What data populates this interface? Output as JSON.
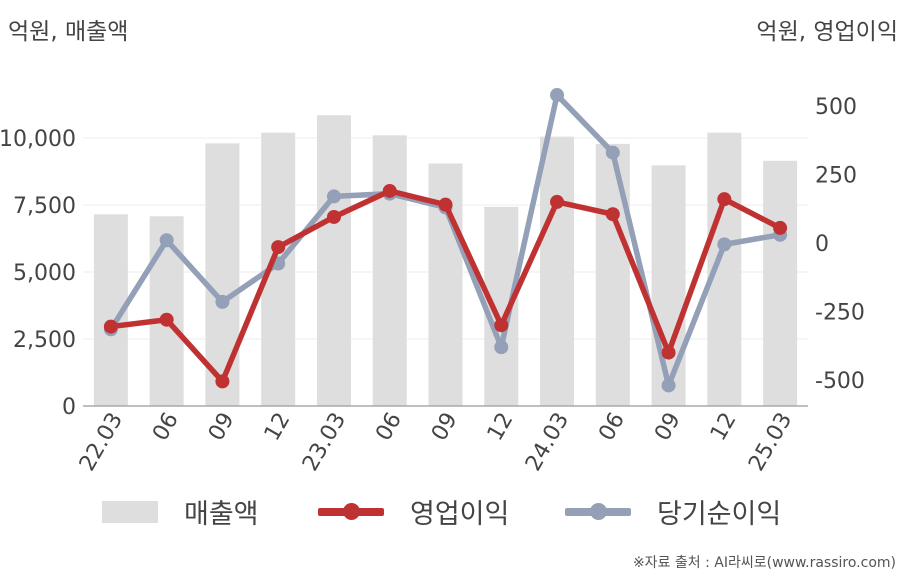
{
  "left_axis_label": "억원, 매출액",
  "right_axis_label": "억원, 영업이익",
  "source": "※자료 출처 : AI라씨로(www.rassiro.com)",
  "chart_data": {
    "type": "bar+line",
    "categories": [
      "22.03",
      "06",
      "09",
      "12",
      "23.03",
      "06",
      "09",
      "12",
      "24.03",
      "06",
      "09",
      "12",
      "25.03"
    ],
    "left_axis": {
      "ticks": [
        "0",
        "2,500",
        "5,000",
        "7,500",
        "10,000"
      ],
      "ylim": [
        0,
        12500
      ]
    },
    "right_axis": {
      "ticks": [
        "-500",
        "-250",
        "0",
        "250",
        "500"
      ],
      "ylim": [
        -600,
        550
      ]
    },
    "grid": true,
    "legend_position": "bottom",
    "series": [
      {
        "name": "매출액",
        "type": "bar",
        "axis": "left",
        "color": "#dedede",
        "values": [
          7150,
          7080,
          9800,
          10200,
          10850,
          10100,
          9050,
          7430,
          10050,
          9780,
          8980,
          10200,
          9150
        ]
      },
      {
        "name": "영업이익",
        "type": "line",
        "axis": "right",
        "color": "#c03232",
        "values": [
          -305,
          -280,
          -505,
          -15,
          95,
          190,
          140,
          -300,
          150,
          105,
          -400,
          160,
          55
        ]
      },
      {
        "name": "당기순이익",
        "type": "line",
        "axis": "right",
        "color": "#94a0b8",
        "values": [
          -315,
          10,
          -215,
          -75,
          170,
          180,
          130,
          -380,
          540,
          330,
          -520,
          -5,
          30
        ]
      }
    ]
  }
}
